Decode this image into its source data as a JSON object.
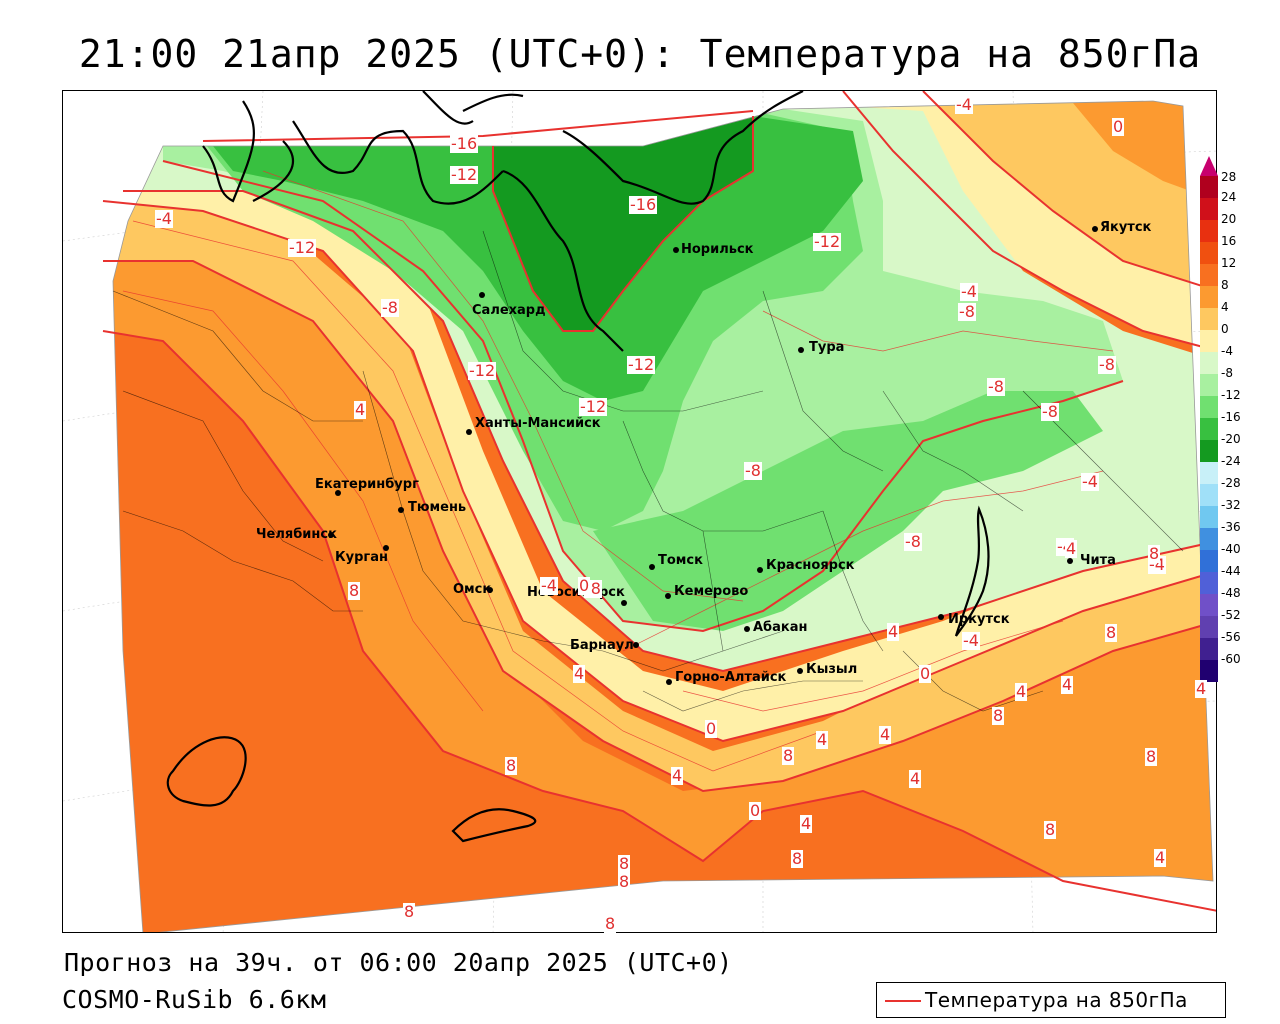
{
  "title": "21:00 21апр 2025 (UTC+0): Температура на 850гПа",
  "forecast_line": "Прогноз на 39ч. от 06:00 20апр 2025 (UTC+0)",
  "model_line": "COSMO-RuSib 6.6км",
  "legend": {
    "label": "Температура на 850гПа",
    "line_color": "#e8322f"
  },
  "colorbar": {
    "labels": [
      "28",
      "24",
      "20",
      "16",
      "12",
      "8",
      "4",
      "0",
      "-4",
      "-8",
      "-12",
      "-16",
      "-20",
      "-24",
      "-28",
      "-32",
      "-36",
      "-40",
      "-44",
      "-48",
      "-52",
      "-56",
      "-60"
    ],
    "colors": [
      "#b0001e",
      "#d0101a",
      "#e83010",
      "#f05010",
      "#f87020",
      "#fc9a30",
      "#fec860",
      "#fff0a8",
      "#d8f8c8",
      "#a8f0a0",
      "#70e070",
      "#38c040",
      "#149a20",
      "#c8f0f8",
      "#a0e0f8",
      "#70c8f0",
      "#4090e0",
      "#3070d8",
      "#5060d8",
      "#7050c8",
      "#6040b0",
      "#402090",
      "#200070"
    ],
    "top_arrow_color": "#c8006e"
  },
  "cities": [
    {
      "name": "Якутск"
    },
    {
      "name": "Норильск"
    },
    {
      "name": "Салехард"
    },
    {
      "name": "Тура"
    },
    {
      "name": "Ханты-Мансийск"
    },
    {
      "name": "Екатеринбург"
    },
    {
      "name": "Тюмень"
    },
    {
      "name": "Челябинск"
    },
    {
      "name": "Курган"
    },
    {
      "name": "Омск"
    },
    {
      "name": "Новосибирск"
    },
    {
      "name": "Томск"
    },
    {
      "name": "Кемерово"
    },
    {
      "name": "Красноярск"
    },
    {
      "name": "Иркутск"
    },
    {
      "name": "Чита"
    },
    {
      "name": "Абакан"
    },
    {
      "name": "Барнаул"
    },
    {
      "name": "Горно-Алтайск"
    },
    {
      "name": "Кызыл"
    }
  ],
  "contour_labels": [
    "-4",
    "0",
    "-16",
    "-12",
    "-16",
    "-12",
    "-12",
    "-8",
    "-4",
    "-8",
    "-12",
    "-12",
    "-12",
    "-8",
    "-8",
    "-8",
    "-8",
    "-4",
    "-8",
    "-4",
    "-4",
    "-4",
    "0",
    "-4",
    "4",
    "8",
    "8",
    "-8",
    "4",
    "0",
    "4",
    "8",
    "4",
    "8",
    "4",
    "4",
    "4",
    "8",
    "8",
    "0",
    "4",
    "8",
    "4",
    "8",
    "8",
    "8",
    "8",
    "8",
    "0",
    "4",
    "4",
    "4",
    "8",
    "4",
    "-4"
  ]
}
